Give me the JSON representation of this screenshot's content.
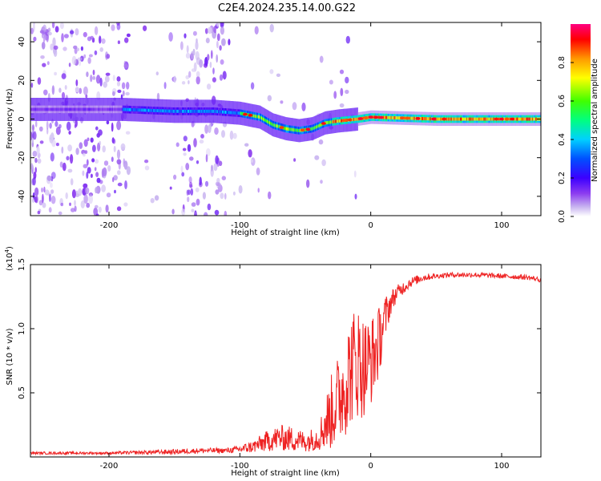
{
  "figure_title": "C2E4.2024.235.14.00.G22",
  "chart_data": [
    {
      "type": "heatmap",
      "xlabel": "Height of straight line (km)",
      "ylabel": "Frequency (Hz)",
      "xlim": [
        -260,
        130
      ],
      "ylim": [
        -50,
        50
      ],
      "x_ticks": [
        -200,
        -100,
        0,
        100
      ],
      "y_ticks": [
        -40,
        -20,
        0,
        20,
        40
      ],
      "colorbar": {
        "label": "Normalized spectral amplitude",
        "range": [
          0.0,
          1.0
        ],
        "ticks": [
          "0.0",
          "0.2",
          "0.4",
          "0.6",
          "0.8"
        ],
        "colormap": [
          "#ffffff",
          "#c8b4f0",
          "#8c3cf0",
          "#3c00ff",
          "#0050ff",
          "#00d0ff",
          "#00ff80",
          "#40ff00",
          "#ffff00",
          "#ff9900",
          "#ff0000",
          "#ff0080"
        ]
      },
      "ridge": {
        "description_points": [
          [
            -190,
            5
          ],
          [
            -150,
            4
          ],
          [
            -120,
            4
          ],
          [
            -100,
            3
          ],
          [
            -85,
            1
          ],
          [
            -75,
            -3
          ],
          [
            -65,
            -5
          ],
          [
            -55,
            -6
          ],
          [
            -45,
            -5
          ],
          [
            -35,
            -2
          ],
          [
            -25,
            -1
          ],
          [
            -10,
            0
          ],
          [
            0,
            1
          ],
          [
            50,
            0
          ],
          [
            130,
            0
          ]
        ],
        "peak_amplitude_by_region": [
          {
            "x_range": [
              -260,
              -190
            ],
            "amplitude": 0.2
          },
          {
            "x_range": [
              -190,
              -100
            ],
            "amplitude": 0.4
          },
          {
            "x_range": [
              -100,
              -30
            ],
            "amplitude": 0.65
          },
          {
            "x_range": [
              -30,
              130
            ],
            "amplitude": 0.8
          }
        ]
      },
      "noise_bands": [
        {
          "x_range": [
            -260,
            -185
          ],
          "density": "high"
        },
        {
          "x_range": [
            -185,
            -145
          ],
          "density": "low"
        },
        {
          "x_range": [
            -145,
            -110
          ],
          "density": "high"
        },
        {
          "x_range": [
            -110,
            -10
          ],
          "density": "low"
        }
      ]
    },
    {
      "type": "line",
      "xlabel": "Height of straight line (km)",
      "ylabel": "SNR (10 * v/v)",
      "y_multiplier_label": "(x10",
      "y_multiplier_exp": "4",
      "y_multiplier_close": ")",
      "xlim": [
        -260,
        130
      ],
      "ylim": [
        0,
        1.5
      ],
      "x_ticks": [
        -200,
        -100,
        0,
        100
      ],
      "y_ticks": [
        0.5,
        1.0,
        1.5
      ],
      "line_color": "#ee2222",
      "series": [
        {
          "x": [
            -260,
            -200,
            -150,
            -130,
            -110,
            -100,
            -90,
            -80,
            -70,
            -60,
            -50,
            -40,
            -35,
            -30,
            -25,
            -20,
            -15,
            -10,
            -5,
            0,
            5,
            10,
            15,
            20,
            30,
            40,
            50,
            60,
            80,
            100,
            120,
            130
          ],
          "y": [
            0.03,
            0.03,
            0.04,
            0.05,
            0.05,
            0.06,
            0.08,
            0.12,
            0.15,
            0.14,
            0.12,
            0.15,
            0.25,
            0.35,
            0.45,
            0.55,
            0.7,
            0.75,
            0.7,
            0.75,
            0.85,
            1.05,
            1.2,
            1.28,
            1.36,
            1.4,
            1.41,
            1.42,
            1.42,
            1.41,
            1.4,
            1.38
          ],
          "noise": [
            0.01,
            0.01,
            0.02,
            0.02,
            0.02,
            0.03,
            0.05,
            0.08,
            0.1,
            0.1,
            0.08,
            0.1,
            0.2,
            0.3,
            0.35,
            0.4,
            0.45,
            0.45,
            0.4,
            0.35,
            0.3,
            0.2,
            0.1,
            0.06,
            0.04,
            0.03,
            0.02,
            0.02,
            0.02,
            0.02,
            0.02,
            0.02
          ]
        }
      ]
    }
  ]
}
